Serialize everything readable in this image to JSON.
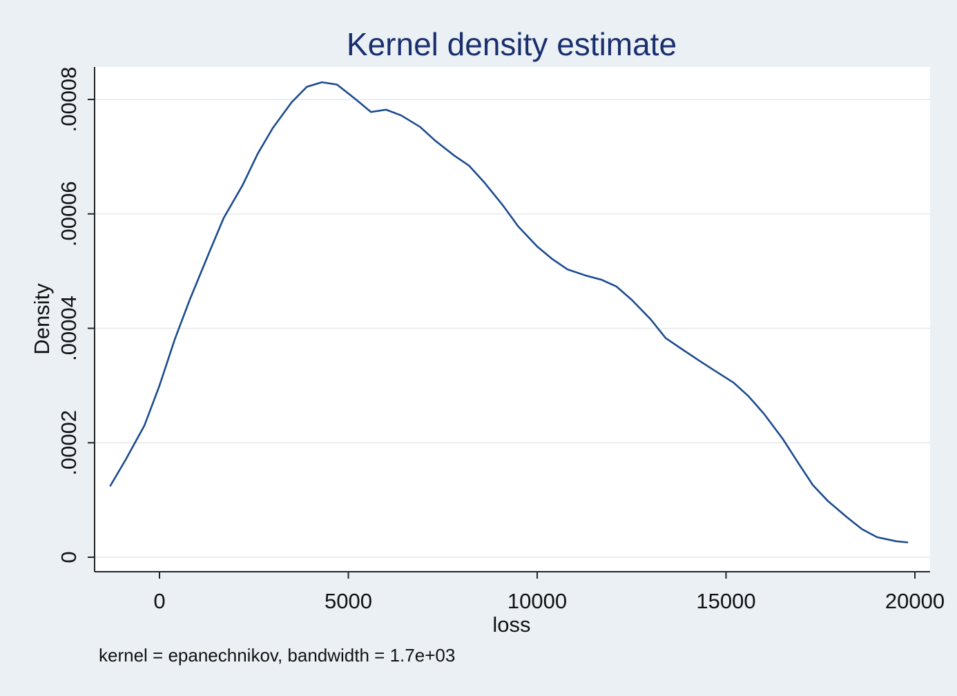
{
  "chart_data": {
    "type": "line",
    "title": "Kernel density estimate",
    "xlabel": "loss",
    "ylabel": "Density",
    "note": "kernel = epanechnikov, bandwidth =  1.7e+03",
    "xlim": [
      -1700,
      20400
    ],
    "ylim": [
      -2.5e-06,
      8.55e-05
    ],
    "x_ticks": [
      0,
      5000,
      10000,
      15000,
      20000
    ],
    "x_tick_labels": [
      "0",
      "5000",
      "10000",
      "15000",
      "20000"
    ],
    "y_ticks": [
      0,
      2e-05,
      4e-05,
      6e-05,
      8e-05
    ],
    "y_tick_labels": [
      "0",
      ".00002",
      ".00004",
      ".00006",
      ".00008"
    ],
    "grid": true,
    "colors": {
      "line": "#1a4a8e",
      "title": "#1a2f6e",
      "plot_bg": "#ffffff",
      "outer_bg": "#eaf0f4",
      "grid": "#e4e9ee"
    },
    "series": [
      {
        "x": [
          -1300,
          -900,
          -400,
          0,
          400,
          800,
          1300,
          1700,
          2200,
          2600,
          3000,
          3500,
          3900,
          4300,
          4700,
          5200,
          5600,
          6000,
          6400,
          6900,
          7300,
          7800,
          8200,
          8600,
          9100,
          9500,
          10000,
          10400,
          10800,
          11300,
          11700,
          12100,
          12500,
          13000,
          13400,
          13800,
          14300,
          14700,
          15200,
          15600,
          16000,
          16500,
          16900,
          17300,
          17700,
          18200,
          18600,
          19000,
          19500,
          19800
        ],
        "y": [
          1.25e-05,
          1.7e-05,
          2.3e-05,
          3e-05,
          3.8e-05,
          4.5e-05,
          5.3e-05,
          5.93e-05,
          6.5e-05,
          7.05e-05,
          7.5e-05,
          7.95e-05,
          8.22e-05,
          8.3e-05,
          8.26e-05,
          8e-05,
          7.78e-05,
          7.82e-05,
          7.72e-05,
          7.52e-05,
          7.28e-05,
          7.02e-05,
          6.84e-05,
          6.55e-05,
          6.14e-05,
          5.78e-05,
          5.43e-05,
          5.21e-05,
          5.03e-05,
          4.92e-05,
          4.85e-05,
          4.73e-05,
          4.5e-05,
          4.16e-05,
          3.83e-05,
          3.65e-05,
          3.43e-05,
          3.26e-05,
          3.05e-05,
          2.81e-05,
          2.51e-05,
          2.07e-05,
          1.66e-05,
          1.26e-05,
          9.8e-06,
          7e-06,
          4.9e-06,
          3.5e-06,
          2.8e-06,
          2.6e-06
        ]
      }
    ]
  }
}
